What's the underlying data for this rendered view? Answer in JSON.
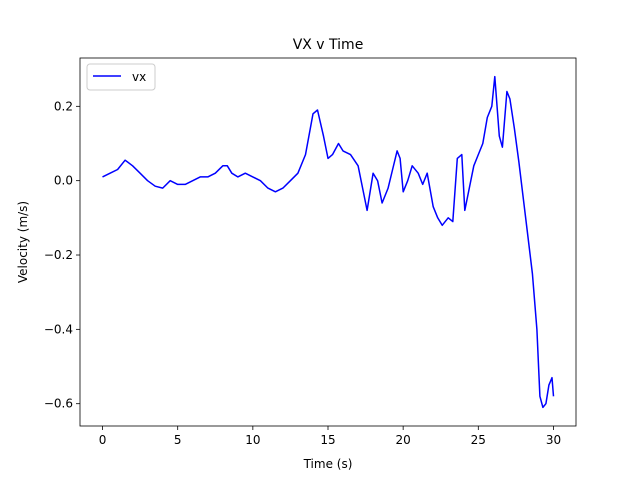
{
  "chart_data": {
    "type": "line",
    "title": "VX v Time",
    "xlabel": "Time (s)",
    "ylabel": "Velocity (m/s)",
    "xlim": [
      -1.5,
      31.5
    ],
    "ylim": [
      -0.66,
      0.33
    ],
    "xticks": [
      0,
      5,
      10,
      15,
      20,
      25,
      30
    ],
    "xtick_labels": [
      "0",
      "5",
      "10",
      "15",
      "20",
      "25",
      "30"
    ],
    "yticks": [
      -0.6,
      -0.4,
      -0.2,
      0.0,
      0.2
    ],
    "ytick_labels": [
      "−0.6",
      "−0.4",
      "−0.2",
      "0.0",
      "0.2"
    ],
    "grid": false,
    "legend": {
      "position": "top-left"
    },
    "series": [
      {
        "name": "vx",
        "color": "#0000ff",
        "x": [
          0.0,
          0.5,
          1.0,
          1.5,
          2.0,
          2.5,
          3.0,
          3.5,
          4.0,
          4.5,
          5.0,
          5.5,
          6.0,
          6.5,
          7.0,
          7.5,
          8.0,
          8.3,
          8.6,
          9.0,
          9.5,
          10.0,
          10.5,
          11.0,
          11.5,
          12.0,
          12.5,
          13.0,
          13.5,
          14.0,
          14.3,
          14.7,
          15.0,
          15.3,
          15.7,
          16.0,
          16.5,
          17.0,
          17.3,
          17.6,
          18.0,
          18.3,
          18.6,
          19.0,
          19.3,
          19.6,
          19.8,
          20.0,
          20.3,
          20.6,
          21.0,
          21.3,
          21.6,
          22.0,
          22.3,
          22.6,
          23.0,
          23.3,
          23.6,
          23.9,
          24.1,
          24.4,
          24.7,
          25.0,
          25.3,
          25.6,
          25.9,
          26.1,
          26.4,
          26.6,
          26.9,
          27.1,
          27.4,
          27.7,
          28.0,
          28.3,
          28.6,
          28.9,
          29.1,
          29.3,
          29.5,
          29.7,
          29.9,
          30.0
        ],
        "y": [
          0.01,
          0.02,
          0.03,
          0.055,
          0.04,
          0.02,
          0.0,
          -0.015,
          -0.02,
          0.0,
          -0.01,
          -0.01,
          0.0,
          0.01,
          0.01,
          0.02,
          0.04,
          0.04,
          0.02,
          0.01,
          0.02,
          0.01,
          0.0,
          -0.02,
          -0.03,
          -0.02,
          0.0,
          0.02,
          0.07,
          0.18,
          0.19,
          0.12,
          0.06,
          0.07,
          0.1,
          0.08,
          0.07,
          0.04,
          -0.02,
          -0.08,
          0.02,
          0.0,
          -0.06,
          -0.02,
          0.03,
          0.08,
          0.06,
          -0.03,
          0.0,
          0.04,
          0.02,
          -0.01,
          0.02,
          -0.07,
          -0.1,
          -0.12,
          -0.1,
          -0.11,
          0.06,
          0.07,
          -0.08,
          -0.02,
          0.04,
          0.07,
          0.1,
          0.17,
          0.2,
          0.28,
          0.12,
          0.09,
          0.24,
          0.22,
          0.14,
          0.05,
          -0.05,
          -0.15,
          -0.25,
          -0.4,
          -0.58,
          -0.61,
          -0.6,
          -0.55,
          -0.53,
          -0.58
        ]
      }
    ]
  }
}
